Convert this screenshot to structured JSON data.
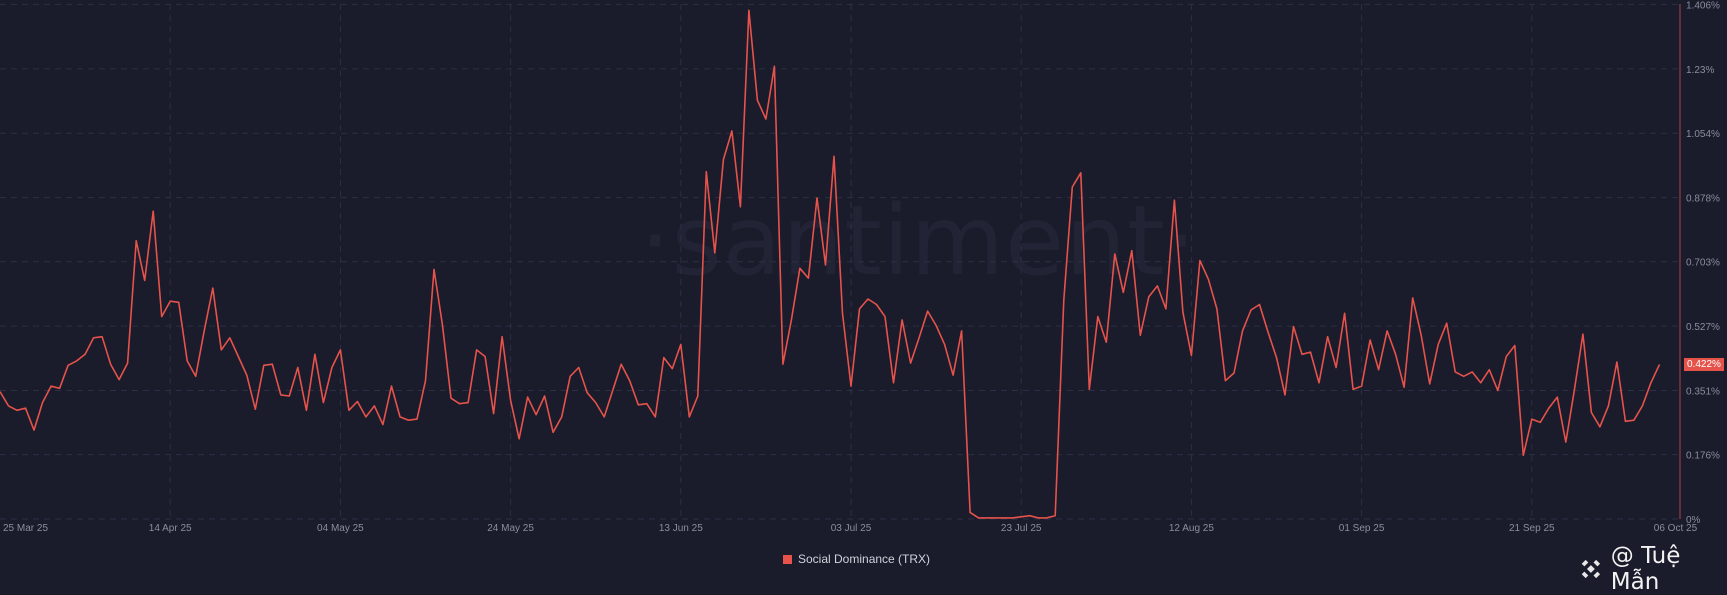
{
  "watermark": "·santiment·",
  "credit": {
    "text": "@ Tuệ Mẫn",
    "icon": "binance-logo-icon"
  },
  "legend": {
    "label": "Social Dominance (TRX)",
    "color": "#e5534b"
  },
  "current_value_label": "0.422%",
  "chart_data": {
    "type": "line",
    "ylabel": "",
    "xlabel": "",
    "ylim": [
      0,
      1.406
    ],
    "y_ticks": [
      "0%",
      "0.176%",
      "0.351%",
      "0.527%",
      "0.703%",
      "0.878%",
      "1.054%",
      "1.23%",
      "1.406%"
    ],
    "y_tick_values": [
      0,
      0.176,
      0.351,
      0.527,
      0.703,
      0.878,
      1.054,
      1.23,
      1.406
    ],
    "x_ticks": [
      "25 Mar 25",
      "14 Apr 25",
      "04 May 25",
      "24 May 25",
      "13 Jun 25",
      "03 Jul 25",
      "23 Jul 25",
      "12 Aug 25",
      "01 Sep 25",
      "21 Sep 25",
      "06 Oct 25"
    ],
    "x_tick_dates": [
      "2025-03-25",
      "2025-04-14",
      "2025-05-04",
      "2025-05-24",
      "2025-06-13",
      "2025-07-03",
      "2025-07-23",
      "2025-08-12",
      "2025-09-01",
      "2025-09-21",
      "2025-10-06"
    ],
    "grid": true,
    "legend_position": "bottom",
    "axis_side": "right",
    "series": [
      {
        "name": "Social Dominance (TRX)",
        "color": "#e5534b",
        "unit": "%",
        "x": [
          "2025-03-25",
          "2025-03-26",
          "2025-03-27",
          "2025-03-28",
          "2025-03-29",
          "2025-03-30",
          "2025-03-31",
          "2025-04-01",
          "2025-04-02",
          "2025-04-03",
          "2025-04-04",
          "2025-04-05",
          "2025-04-06",
          "2025-04-07",
          "2025-04-08",
          "2025-04-09",
          "2025-04-10",
          "2025-04-11",
          "2025-04-12",
          "2025-04-13",
          "2025-04-14",
          "2025-04-15",
          "2025-04-16",
          "2025-04-17",
          "2025-04-18",
          "2025-04-19",
          "2025-04-20",
          "2025-04-21",
          "2025-04-22",
          "2025-04-23",
          "2025-04-24",
          "2025-04-25",
          "2025-04-26",
          "2025-04-27",
          "2025-04-28",
          "2025-04-29",
          "2025-04-30",
          "2025-05-01",
          "2025-05-02",
          "2025-05-03",
          "2025-05-04",
          "2025-05-05",
          "2025-05-06",
          "2025-05-07",
          "2025-05-08",
          "2025-05-09",
          "2025-05-10",
          "2025-05-11",
          "2025-05-12",
          "2025-05-13",
          "2025-05-14",
          "2025-05-15",
          "2025-05-16",
          "2025-05-17",
          "2025-05-18",
          "2025-05-19",
          "2025-05-20",
          "2025-05-21",
          "2025-05-22",
          "2025-05-23",
          "2025-05-24",
          "2025-05-25",
          "2025-05-26",
          "2025-05-27",
          "2025-05-28",
          "2025-05-29",
          "2025-05-30",
          "2025-05-31",
          "2025-06-01",
          "2025-06-02",
          "2025-06-03",
          "2025-06-04",
          "2025-06-05",
          "2025-06-06",
          "2025-06-07",
          "2025-06-08",
          "2025-06-09",
          "2025-06-10",
          "2025-06-11",
          "2025-06-12",
          "2025-06-13",
          "2025-06-14",
          "2025-06-15",
          "2025-06-16",
          "2025-06-17",
          "2025-06-18",
          "2025-06-19",
          "2025-06-20",
          "2025-06-21",
          "2025-06-22",
          "2025-06-23",
          "2025-06-24",
          "2025-06-25",
          "2025-06-26",
          "2025-06-27",
          "2025-06-28",
          "2025-06-29",
          "2025-06-30",
          "2025-07-01",
          "2025-07-02",
          "2025-07-03",
          "2025-07-04",
          "2025-07-05",
          "2025-07-06",
          "2025-07-07",
          "2025-07-08",
          "2025-07-09",
          "2025-07-10",
          "2025-07-11",
          "2025-07-12",
          "2025-07-13",
          "2025-07-14",
          "2025-07-15",
          "2025-07-16",
          "2025-07-17",
          "2025-07-18",
          "2025-07-19",
          "2025-07-20",
          "2025-07-21",
          "2025-07-22",
          "2025-07-23",
          "2025-07-24",
          "2025-07-25",
          "2025-07-26",
          "2025-07-27",
          "2025-07-28",
          "2025-07-29",
          "2025-07-30",
          "2025-07-31",
          "2025-08-01",
          "2025-08-02",
          "2025-08-03",
          "2025-08-04",
          "2025-08-05",
          "2025-08-06",
          "2025-08-07",
          "2025-08-08",
          "2025-08-09",
          "2025-08-10",
          "2025-08-11",
          "2025-08-12",
          "2025-08-13",
          "2025-08-14",
          "2025-08-15",
          "2025-08-16",
          "2025-08-17",
          "2025-08-18",
          "2025-08-19",
          "2025-08-20",
          "2025-08-21",
          "2025-08-22",
          "2025-08-23",
          "2025-08-24",
          "2025-08-25",
          "2025-08-26",
          "2025-08-27",
          "2025-08-28",
          "2025-08-29",
          "2025-08-30",
          "2025-08-31",
          "2025-09-01",
          "2025-09-02",
          "2025-09-03",
          "2025-09-04",
          "2025-09-05",
          "2025-09-06",
          "2025-09-07",
          "2025-09-08",
          "2025-09-09",
          "2025-09-10",
          "2025-09-11",
          "2025-09-12",
          "2025-09-13",
          "2025-09-14",
          "2025-09-15",
          "2025-09-16",
          "2025-09-17",
          "2025-09-18",
          "2025-09-19",
          "2025-09-20",
          "2025-09-21",
          "2025-09-22",
          "2025-09-23",
          "2025-09-24",
          "2025-09-25",
          "2025-09-26",
          "2025-09-27",
          "2025-09-28",
          "2025-09-29",
          "2025-09-30",
          "2025-10-01",
          "2025-10-02",
          "2025-10-03",
          "2025-10-04",
          "2025-10-05",
          "2025-10-06"
        ],
        "values": [
          0.348,
          0.309,
          0.297,
          0.303,
          0.243,
          0.318,
          0.363,
          0.357,
          0.42,
          0.432,
          0.45,
          0.495,
          0.498,
          0.423,
          0.381,
          0.426,
          0.76,
          0.652,
          0.841,
          0.553,
          0.595,
          0.592,
          0.432,
          0.39,
          0.514,
          0.631,
          0.462,
          0.495,
          0.444,
          0.393,
          0.3,
          0.42,
          0.423,
          0.339,
          0.336,
          0.414,
          0.297,
          0.45,
          0.318,
          0.414,
          0.462,
          0.297,
          0.321,
          0.279,
          0.309,
          0.258,
          0.363,
          0.279,
          0.27,
          0.273,
          0.378,
          0.682,
          0.529,
          0.33,
          0.315,
          0.318,
          0.462,
          0.444,
          0.288,
          0.498,
          0.324,
          0.219,
          0.333,
          0.285,
          0.336,
          0.237,
          0.279,
          0.39,
          0.414,
          0.345,
          0.318,
          0.279,
          0.351,
          0.423,
          0.378,
          0.312,
          0.315,
          0.279,
          0.441,
          0.411,
          0.477,
          0.279,
          0.336,
          0.949,
          0.727,
          0.982,
          1.06,
          0.853,
          1.39,
          1.144,
          1.093,
          1.237,
          0.423,
          0.544,
          0.685,
          0.658,
          0.877,
          0.694,
          0.991,
          0.562,
          0.363,
          0.574,
          0.601,
          0.586,
          0.553,
          0.372,
          0.544,
          0.426,
          0.495,
          0.568,
          0.529,
          0.477,
          0.393,
          0.514,
          0.018,
          0.003,
          0.003,
          0.003,
          0.003,
          0.003,
          0.006,
          0.009,
          0.003,
          0.003,
          0.009,
          0.598,
          0.907,
          0.946,
          0.354,
          0.553,
          0.483,
          0.724,
          0.619,
          0.733,
          0.502,
          0.607,
          0.637,
          0.574,
          0.871,
          0.565,
          0.447,
          0.706,
          0.655,
          0.574,
          0.378,
          0.399,
          0.514,
          0.571,
          0.586,
          0.511,
          0.441,
          0.339,
          0.526,
          0.45,
          0.456,
          0.372,
          0.498,
          0.414,
          0.562,
          0.354,
          0.363,
          0.489,
          0.408,
          0.514,
          0.45,
          0.36,
          0.604,
          0.502,
          0.369,
          0.477,
          0.535,
          0.402,
          0.39,
          0.402,
          0.372,
          0.408,
          0.351,
          0.444,
          0.474,
          0.174,
          0.273,
          0.264,
          0.303,
          0.333,
          0.21,
          0.351,
          0.505,
          0.291,
          0.252,
          0.309,
          0.429,
          0.267,
          0.27,
          0.309,
          0.372,
          0.422
        ]
      }
    ]
  }
}
